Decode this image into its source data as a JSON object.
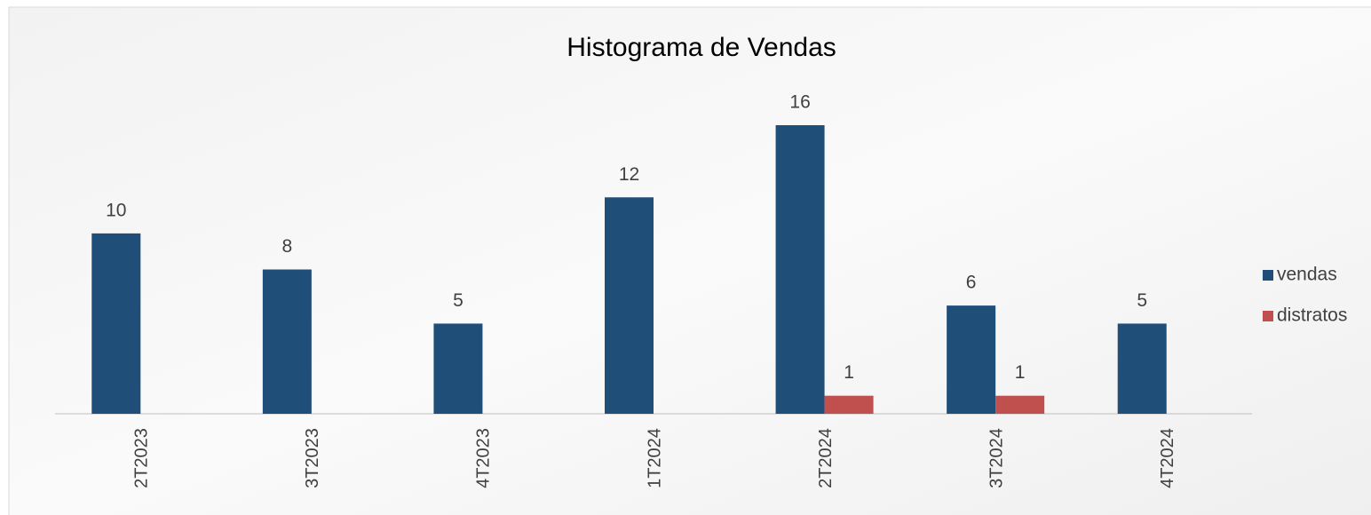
{
  "chart_data": {
    "type": "bar",
    "title": "Histograma de Vendas",
    "categories": [
      "2T2023",
      "3T2023",
      "4T2023",
      "1T2024",
      "2T2024",
      "3T2024",
      "4T2024"
    ],
    "series": [
      {
        "name": "vendas",
        "color": "#1f4e79",
        "values": [
          10,
          8,
          5,
          12,
          16,
          6,
          5
        ]
      },
      {
        "name": "distratos",
        "color": "#c0504d",
        "values": [
          null,
          null,
          null,
          null,
          1,
          1,
          null
        ]
      }
    ],
    "legend": "right"
  }
}
